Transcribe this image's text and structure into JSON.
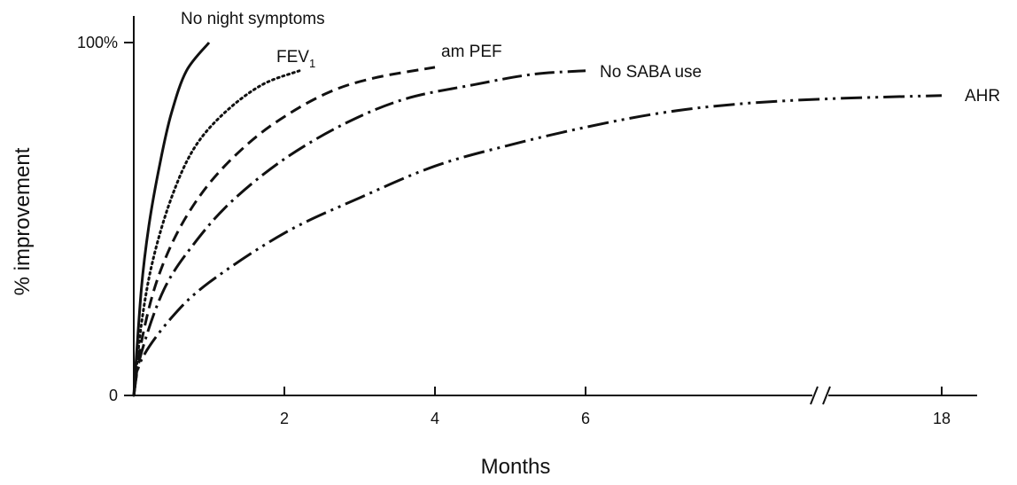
{
  "chart_data": {
    "type": "line",
    "title": "",
    "xlabel": "Months",
    "ylabel": "% improvement",
    "x_ticks": [
      "2",
      "4",
      "6",
      "18"
    ],
    "y_ticks": [
      "0",
      "100%"
    ],
    "xlim": [
      0,
      18
    ],
    "ylim": [
      0,
      100
    ],
    "x_axis_break": "between 6 and 18",
    "grid": false,
    "legend": "labels at curve ends",
    "series": [
      {
        "name": "No night symptoms",
        "style": "solid",
        "points": [
          [
            0,
            0
          ],
          [
            0.1,
            30
          ],
          [
            0.2,
            48
          ],
          [
            0.35,
            66
          ],
          [
            0.5,
            80
          ],
          [
            0.7,
            92
          ],
          [
            1.0,
            100
          ]
        ]
      },
      {
        "name": "FEV1",
        "style": "dotted",
        "points": [
          [
            0,
            0
          ],
          [
            0.1,
            20
          ],
          [
            0.25,
            38
          ],
          [
            0.5,
            56
          ],
          [
            0.8,
            70
          ],
          [
            1.2,
            80
          ],
          [
            1.7,
            88
          ],
          [
            2.2,
            92
          ]
        ]
      },
      {
        "name": "am PEF",
        "style": "dashed",
        "points": [
          [
            0,
            0
          ],
          [
            0.1,
            15
          ],
          [
            0.3,
            32
          ],
          [
            0.6,
            47
          ],
          [
            1.0,
            60
          ],
          [
            1.5,
            71
          ],
          [
            2.0,
            79
          ],
          [
            2.6,
            86
          ],
          [
            3.2,
            90
          ],
          [
            4.0,
            93
          ]
        ]
      },
      {
        "name": "No SABA use",
        "style": "dash-dot",
        "points": [
          [
            0,
            0
          ],
          [
            0.1,
            12
          ],
          [
            0.4,
            30
          ],
          [
            0.8,
            43
          ],
          [
            1.3,
            55
          ],
          [
            2.0,
            67
          ],
          [
            2.8,
            77
          ],
          [
            3.6,
            84
          ],
          [
            4.5,
            88
          ],
          [
            5.3,
            91
          ],
          [
            6.0,
            92
          ]
        ]
      },
      {
        "name": "AHR",
        "style": "dash-dot-dot",
        "points": [
          [
            0,
            0
          ],
          [
            0.1,
            10
          ],
          [
            0.5,
            22
          ],
          [
            1.0,
            32
          ],
          [
            2.0,
            46
          ],
          [
            3.0,
            56
          ],
          [
            4.0,
            65
          ],
          [
            5.0,
            71
          ],
          [
            6.0,
            76
          ],
          [
            8.5,
            80
          ],
          [
            11.0,
            82.5
          ],
          [
            14.0,
            84
          ],
          [
            18.0,
            85
          ]
        ]
      }
    ]
  }
}
